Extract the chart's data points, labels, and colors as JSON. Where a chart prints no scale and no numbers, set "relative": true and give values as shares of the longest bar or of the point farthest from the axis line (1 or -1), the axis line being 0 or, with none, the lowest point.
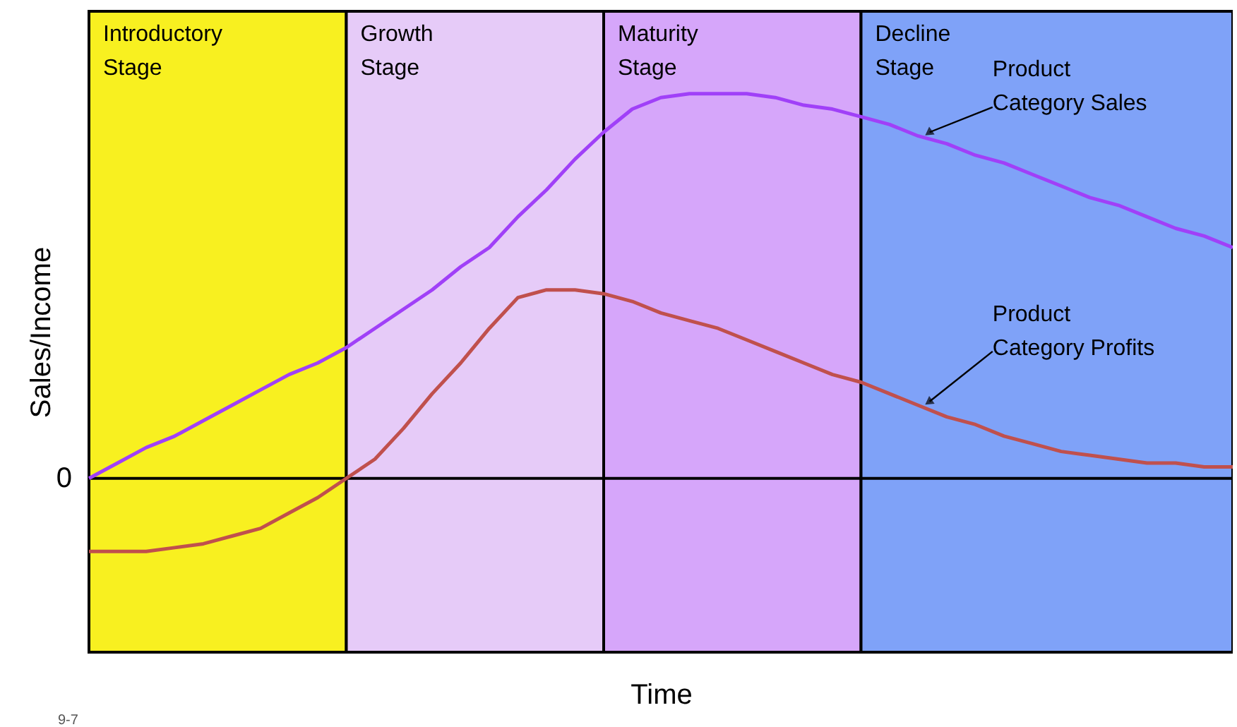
{
  "chart_data": {
    "type": "line",
    "relative": true,
    "xlabel": "Time",
    "ylabel": "Sales/Income",
    "categories": [
      null,
      null,
      null,
      null,
      null,
      null,
      null,
      null,
      null,
      null,
      null,
      null,
      null,
      null,
      null,
      null,
      null,
      null,
      null,
      null,
      null,
      null,
      null,
      null,
      null,
      null,
      null,
      null,
      null,
      null,
      null,
      null,
      null,
      null,
      null,
      null,
      null,
      null,
      null,
      null,
      null
    ],
    "series": [
      {
        "name": "Product Category Sales",
        "color": "#a040f8",
        "values": [
          0,
          0.04,
          0.08,
          0.11,
          0.15,
          0.19,
          0.23,
          0.27,
          0.3,
          0.34,
          0.39,
          0.44,
          0.49,
          0.55,
          0.6,
          0.68,
          0.75,
          0.83,
          0.9,
          0.96,
          0.99,
          1,
          1,
          1,
          0.99,
          0.97,
          0.96,
          0.94,
          0.92,
          0.89,
          0.87,
          0.84,
          0.82,
          0.79,
          0.76,
          0.73,
          0.71,
          0.68,
          0.65,
          0.63,
          0.6
        ]
      },
      {
        "name": "Product Category Profits",
        "color": "#c0504d",
        "values": [
          -0.19,
          -0.19,
          -0.19,
          -0.18,
          -0.17,
          -0.15,
          -0.13,
          -0.09,
          -0.05,
          0,
          0.05,
          0.13,
          0.22,
          0.3,
          0.39,
          0.47,
          0.49,
          0.49,
          0.48,
          0.46,
          0.43,
          0.41,
          0.39,
          0.36,
          0.33,
          0.3,
          0.27,
          0.25,
          0.22,
          0.19,
          0.16,
          0.14,
          0.11,
          0.09,
          0.07,
          0.06,
          0.05,
          0.04,
          0.04,
          0.03,
          0.03
        ]
      }
    ],
    "ref_lines": [
      {
        "axis": "y",
        "value": 0,
        "label": "0"
      }
    ],
    "annotations": [
      "Introductory Stage",
      "Growth Stage",
      "Maturity Stage",
      "Decline Stage",
      "9-7"
    ]
  }
}
